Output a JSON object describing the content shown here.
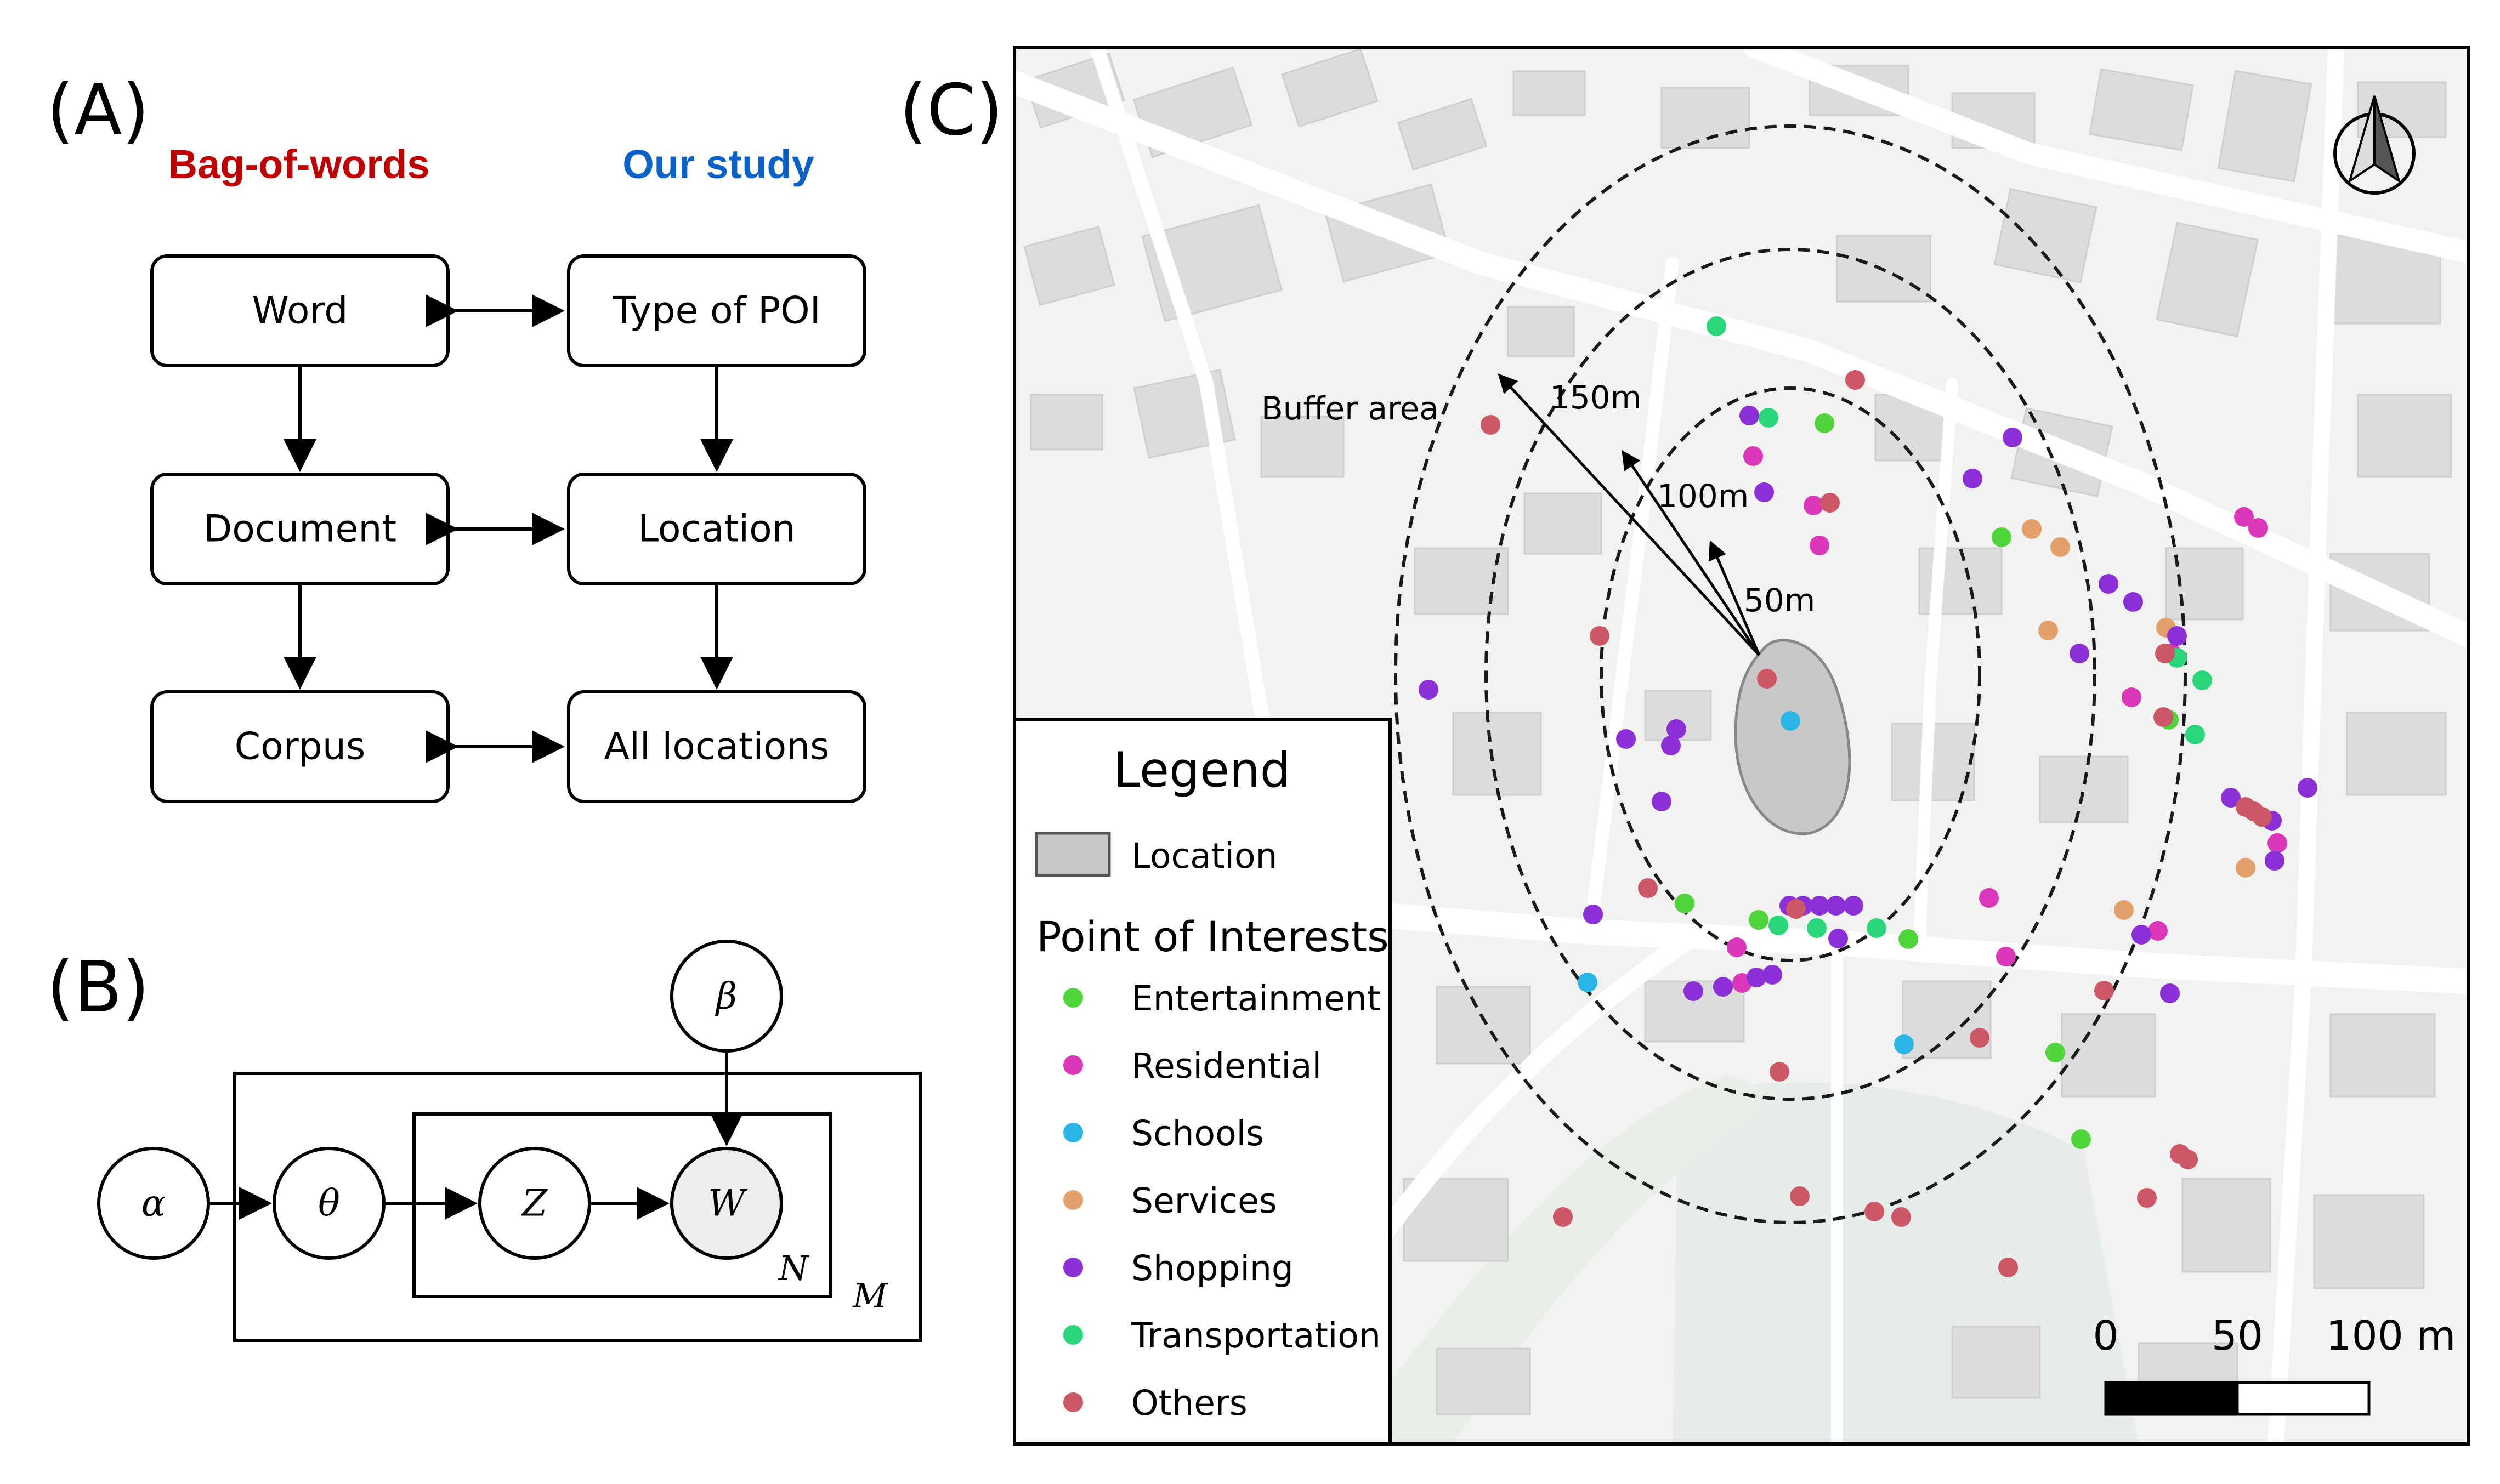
{
  "panel_a": {
    "label": "(A)",
    "left_header": "Bag-of-words",
    "right_header": "Our study",
    "left_header_color": "#c00000",
    "right_header_color": "#0a62c8",
    "left_boxes": [
      "Word",
      "Document",
      "Corpus"
    ],
    "right_boxes": [
      "Type of POI",
      "Location",
      "All locations"
    ]
  },
  "panel_b": {
    "label": "(B)",
    "nodes": {
      "alpha": "α",
      "theta": "θ",
      "z": "Z",
      "w": "W",
      "beta": "β"
    },
    "plate_inner": "N",
    "plate_outer": "M"
  },
  "panel_c": {
    "label": "(C)",
    "buffer_label": "Buffer area",
    "rings": [
      "50m",
      "100m",
      "150m"
    ],
    "legend": {
      "title": "Legend",
      "location_label": "Location",
      "poi_title": "Point of Interests",
      "categories": [
        {
          "name": "Entertainment",
          "color": "#4fd43c"
        },
        {
          "name": "Residential",
          "color": "#db37b8"
        },
        {
          "name": "Schools",
          "color": "#2bb5e6"
        },
        {
          "name": "Services",
          "color": "#e3a06a"
        },
        {
          "name": "Shopping",
          "color": "#8b2fd6"
        },
        {
          "name": "Transportation",
          "color": "#2ad67b"
        },
        {
          "name": "Others",
          "color": "#cc5867"
        }
      ]
    },
    "scale": {
      "t0": "0",
      "t50": "50",
      "t100": "100 m"
    }
  }
}
